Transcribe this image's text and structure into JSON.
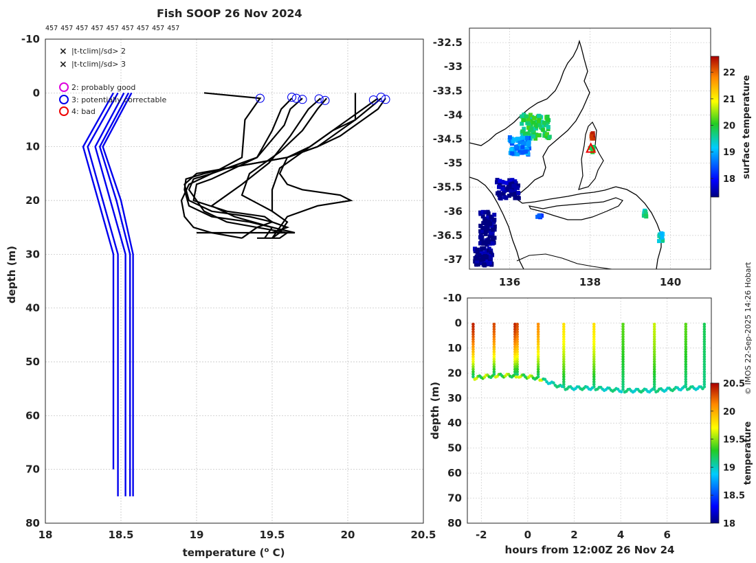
{
  "title": "Fish SOOP 26 Nov 2024",
  "profile_ids": [
    "457",
    "457",
    "457",
    "457",
    "457",
    "457",
    "457",
    "457",
    "457"
  ],
  "credit": "© IMOS 22-Sep-2025 14:26 Hobart",
  "colors": {
    "profile": "#000000",
    "climatology": "#0000ee",
    "sd2": "#22cc22",
    "sd3": "#ee0000",
    "good": "#dd00dd",
    "correctable": "#0000ee",
    "bad": "#ee0000"
  },
  "legend": {
    "sd2": "|t-tclim|/sd> 2",
    "sd3": "|t-tclim|/sd> 3",
    "good": "2: probably good",
    "correctable": "3: potentially correctable",
    "bad": "4: bad"
  },
  "chart_data": [
    {
      "type": "line",
      "name": "profiles",
      "xlabel": "temperature (° C)",
      "ylabel": "depth (m)",
      "xlim": [
        18,
        20.5
      ],
      "ylim": [
        -10,
        80
      ],
      "xticks": [
        18,
        18.5,
        19,
        19.5,
        20,
        20.5
      ],
      "xtick_labels": [
        "18",
        "18.5",
        "19",
        "19.5",
        "20",
        "20.5"
      ],
      "yticks": [
        -10,
        0,
        10,
        20,
        30,
        40,
        50,
        60,
        70,
        80
      ],
      "grid": true,
      "climatology": [
        {
          "x": [
            18.45,
            18.25,
            18.35,
            18.45,
            18.45
          ],
          "y": [
            0,
            10,
            20,
            30,
            70
          ]
        },
        {
          "x": [
            18.48,
            18.28,
            18.38,
            18.48,
            18.48
          ],
          "y": [
            0,
            10,
            20,
            30,
            75
          ]
        },
        {
          "x": [
            18.52,
            18.33,
            18.43,
            18.53,
            18.53
          ],
          "y": [
            0,
            10,
            20,
            30,
            75
          ]
        },
        {
          "x": [
            18.55,
            18.36,
            18.47,
            18.56,
            18.56
          ],
          "y": [
            0,
            10,
            20,
            30,
            75
          ]
        },
        {
          "x": [
            18.57,
            18.38,
            18.5,
            18.58,
            18.58
          ],
          "y": [
            0,
            10,
            20,
            30,
            75
          ]
        }
      ],
      "profiles": [
        {
          "x": [
            19.05,
            19.42,
            19.32,
            19.3,
            19.1,
            18.95,
            18.9,
            18.92,
            18.98,
            19.1,
            19.3
          ],
          "y": [
            0,
            1,
            5,
            12,
            15,
            17,
            20,
            23,
            25,
            26,
            27
          ]
        },
        {
          "x": [
            19.63,
            19.56,
            19.5,
            19.4,
            19.1,
            18.98,
            18.95,
            19.0,
            19.05,
            19.2,
            19.4,
            19.6,
            19.55,
            19.4
          ],
          "y": [
            1,
            3,
            7,
            12,
            15,
            16,
            18,
            20,
            22,
            24,
            25,
            26,
            27,
            27
          ]
        },
        {
          "x": [
            19.7,
            19.62,
            19.58,
            19.4,
            19.1,
            19.0,
            18.98,
            19.2,
            19.45,
            19.5,
            19.4,
            19.3
          ],
          "y": [
            1,
            3,
            6,
            12,
            16,
            17,
            20,
            22,
            23,
            24,
            25,
            27
          ]
        },
        {
          "x": [
            19.82,
            19.74,
            19.62,
            19.48,
            19.3,
            19.2,
            19.1,
            19.25,
            19.5,
            19.45
          ],
          "y": [
            1,
            3,
            8,
            13,
            17,
            19,
            21,
            23,
            25,
            27
          ]
        },
        {
          "x": [
            19.86,
            19.8,
            19.7,
            19.55,
            19.35,
            19.3,
            19.5,
            19.6,
            19.55,
            19.5
          ],
          "y": [
            1,
            3,
            7,
            11,
            15,
            19,
            22,
            24,
            26,
            27
          ]
        },
        {
          "x": [
            20.05,
            20.05,
            19.9,
            19.75,
            19.6,
            19.55,
            19.6,
            19.7,
            19.95,
            20.02,
            19.8,
            19.6,
            19.5
          ],
          "y": [
            0,
            5,
            7,
            10,
            12,
            15,
            17,
            18,
            19,
            20,
            21,
            23,
            27
          ]
        },
        {
          "x": [
            20.2,
            20.1,
            20.0,
            19.85,
            19.7,
            19.55,
            19.5,
            19.5
          ],
          "y": [
            1,
            3,
            5,
            8,
            11,
            14,
            18,
            22
          ]
        },
        {
          "x": [
            20.22,
            20.18,
            20.05,
            19.8,
            19.6,
            19.4,
            19.2,
            19.0,
            18.92,
            18.95,
            19.1,
            19.35,
            19.5,
            19.6,
            19.5
          ],
          "y": [
            1,
            2,
            5,
            10,
            12,
            13,
            14,
            15,
            17,
            20,
            22,
            23,
            24,
            25,
            26
          ]
        },
        {
          "x": [
            20.25,
            20.2,
            20.1,
            19.95,
            19.8,
            19.6,
            19.4,
            19.2,
            19.05,
            18.93,
            18.92,
            18.95,
            19.1,
            19.35,
            19.65,
            19.45,
            19.25,
            19.0
          ],
          "y": [
            1,
            3,
            5,
            8,
            10,
            12,
            13,
            14,
            15,
            16,
            18,
            21,
            23,
            24,
            26,
            26,
            26,
            26
          ]
        }
      ],
      "markers_correctable": [
        {
          "x": 19.42,
          "y": 1
        },
        {
          "x": 19.63,
          "y": 0.8
        },
        {
          "x": 19.66,
          "y": 1
        },
        {
          "x": 19.7,
          "y": 1.2
        },
        {
          "x": 19.81,
          "y": 1.1
        },
        {
          "x": 19.85,
          "y": 1.4
        },
        {
          "x": 20.17,
          "y": 1.3
        },
        {
          "x": 20.22,
          "y": 0.8
        },
        {
          "x": 20.25,
          "y": 1.2
        }
      ]
    },
    {
      "type": "heatmap",
      "name": "map",
      "xlim": [
        135,
        141
      ],
      "ylim": [
        -37.2,
        -32.2
      ],
      "xticks": [
        136,
        138,
        140
      ],
      "xtick_labels": [
        "136",
        "138",
        "140"
      ],
      "yticks": [
        -32.5,
        -33,
        -33.5,
        -34,
        -34.5,
        -35,
        -35.5,
        -36,
        -36.5,
        -37
      ],
      "ytick_labels": [
        "-32.5",
        "-33",
        "-33.5",
        "-34",
        "-34.5",
        "-35",
        "-35.5",
        "-36",
        "-36.5",
        "-37"
      ],
      "colorbar_label": "surface temperature",
      "clim": [
        17.3,
        22.6
      ],
      "cticks": [
        18,
        19,
        20,
        21,
        22
      ],
      "cluster_values": [
        {
          "lon": 136.6,
          "lat": -34.2,
          "value": 19.8
        },
        {
          "lon": 136.2,
          "lat": -34.6,
          "value": 18.8
        },
        {
          "lon": 135.9,
          "lat": -35.5,
          "value": 17.4
        },
        {
          "lon": 135.4,
          "lat": -36.3,
          "value": 17.3
        },
        {
          "lon": 135.3,
          "lat": -36.9,
          "value": 17.3
        },
        {
          "lon": 138.0,
          "lat": -34.4,
          "value": 22.5
        },
        {
          "lon": 138.0,
          "lat": -34.7,
          "value": 19.8
        },
        {
          "lon": 136.7,
          "lat": -36.05,
          "value": 18.5
        },
        {
          "lon": 139.3,
          "lat": -36.0,
          "value": 19.6
        },
        {
          "lon": 139.7,
          "lat": -36.5,
          "value": 19.4
        }
      ],
      "marker_position": {
        "lon": 138.02,
        "lat": -34.7
      }
    },
    {
      "type": "scatter",
      "name": "time_depth",
      "xlabel": "hours from 12:00Z 26 Nov 24",
      "ylabel": "depth (m)",
      "xlim": [
        -2.6,
        7.9
      ],
      "ylim": [
        -10,
        80
      ],
      "xticks": [
        -2,
        0,
        2,
        4,
        6
      ],
      "xtick_labels": [
        "-2",
        "0",
        "2",
        "4",
        "6"
      ],
      "yticks": [
        -10,
        0,
        10,
        20,
        30,
        40,
        50,
        60,
        70,
        80
      ],
      "colorbar_label": "temperature",
      "clim": [
        18,
        20.5
      ],
      "cticks": [
        18,
        18.5,
        19,
        19.5,
        20,
        20.5
      ],
      "ctick_labels": [
        "18",
        "18.5",
        "19",
        "19.5",
        "20",
        "20.5"
      ],
      "casts": [
        {
          "hour": -2.35,
          "surface_temp": 20.4,
          "bottom_depth": 22
        },
        {
          "hour": -1.45,
          "surface_temp": 20.3,
          "bottom_depth": 21
        },
        {
          "hour": -0.55,
          "surface_temp": 20.4,
          "bottom_depth": 21
        },
        {
          "hour": -0.45,
          "surface_temp": 20.3,
          "bottom_depth": 21
        },
        {
          "hour": 0.45,
          "surface_temp": 20.1,
          "bottom_depth": 22
        },
        {
          "hour": 1.55,
          "surface_temp": 19.8,
          "bottom_depth": 26
        },
        {
          "hour": 2.85,
          "surface_temp": 19.8,
          "bottom_depth": 26
        },
        {
          "hour": 4.1,
          "surface_temp": 19.4,
          "bottom_depth": 27
        },
        {
          "hour": 5.45,
          "surface_temp": 19.6,
          "bottom_depth": 27
        },
        {
          "hour": 6.8,
          "surface_temp": 19.4,
          "bottom_depth": 26
        },
        {
          "hour": 7.6,
          "surface_temp": 19.2,
          "bottom_depth": 26
        }
      ]
    }
  ]
}
